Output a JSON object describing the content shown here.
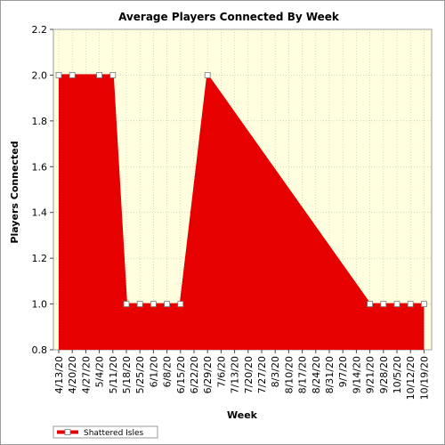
{
  "chart_data": {
    "type": "area",
    "title": "Average Players Connected By Week",
    "xlabel": "Week",
    "ylabel": "Players Connected",
    "ylim": [
      0.8,
      2.2
    ],
    "yticks": [
      "0.8",
      "1.0",
      "1.2",
      "1.4",
      "1.6",
      "1.8",
      "2.0",
      "2.2"
    ],
    "grid": true,
    "legend_position": "bottom-left",
    "plot_background": "#ffffe0",
    "x": [
      "4/13/20",
      "4/20/20",
      "4/27/20",
      "5/4/20",
      "5/11/20",
      "5/18/20",
      "5/25/20",
      "6/1/20",
      "6/8/20",
      "6/15/20",
      "6/22/20",
      "6/29/20",
      "7/6/20",
      "7/13/20",
      "7/20/20",
      "7/27/20",
      "8/3/20",
      "8/10/20",
      "8/17/20",
      "8/24/20",
      "8/31/20",
      "9/7/20",
      "9/14/20",
      "9/21/20",
      "9/28/20",
      "10/5/20",
      "10/12/20",
      "10/19/20"
    ],
    "series": [
      {
        "name": "Shattered Isles",
        "color": "#e60000",
        "points": [
          {
            "x": "4/13/20",
            "y": 2.0
          },
          {
            "x": "4/20/20",
            "y": 2.0
          },
          {
            "x": "5/4/20",
            "y": 2.0
          },
          {
            "x": "5/11/20",
            "y": 2.0
          },
          {
            "x": "5/18/20",
            "y": 1.0
          },
          {
            "x": "5/25/20",
            "y": 1.0
          },
          {
            "x": "6/1/20",
            "y": 1.0
          },
          {
            "x": "6/8/20",
            "y": 1.0
          },
          {
            "x": "6/15/20",
            "y": 1.0
          },
          {
            "x": "6/29/20",
            "y": 2.0
          },
          {
            "x": "9/21/20",
            "y": 1.0
          },
          {
            "x": "9/28/20",
            "y": 1.0
          },
          {
            "x": "10/5/20",
            "y": 1.0
          },
          {
            "x": "10/12/20",
            "y": 1.0
          },
          {
            "x": "10/19/20",
            "y": 1.0
          }
        ]
      }
    ]
  }
}
